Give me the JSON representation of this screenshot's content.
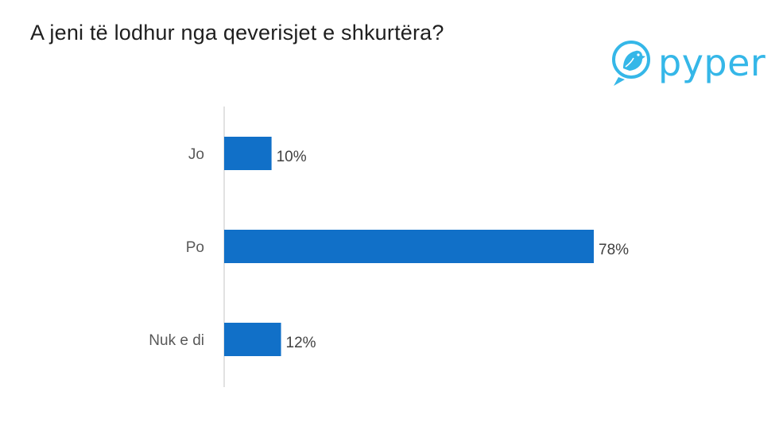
{
  "title": "A jeni të lodhur nga qeverisjet e shkurtëra?",
  "logo": {
    "text": "pyper",
    "icon": "bird-icon",
    "color": "#35b7e8"
  },
  "chart_data": {
    "type": "bar",
    "orientation": "horizontal",
    "title": "A jeni të lodhur nga qeverisjet e shkurtëra?",
    "categories": [
      "Jo",
      "Po",
      "Nuk e di"
    ],
    "values": [
      10,
      78,
      12
    ],
    "value_labels": [
      "10%",
      "78%",
      "12%"
    ],
    "unit": "%",
    "xlim": [
      0,
      100
    ],
    "grid": false,
    "legend": "none",
    "bar_color": "#1170c8"
  }
}
